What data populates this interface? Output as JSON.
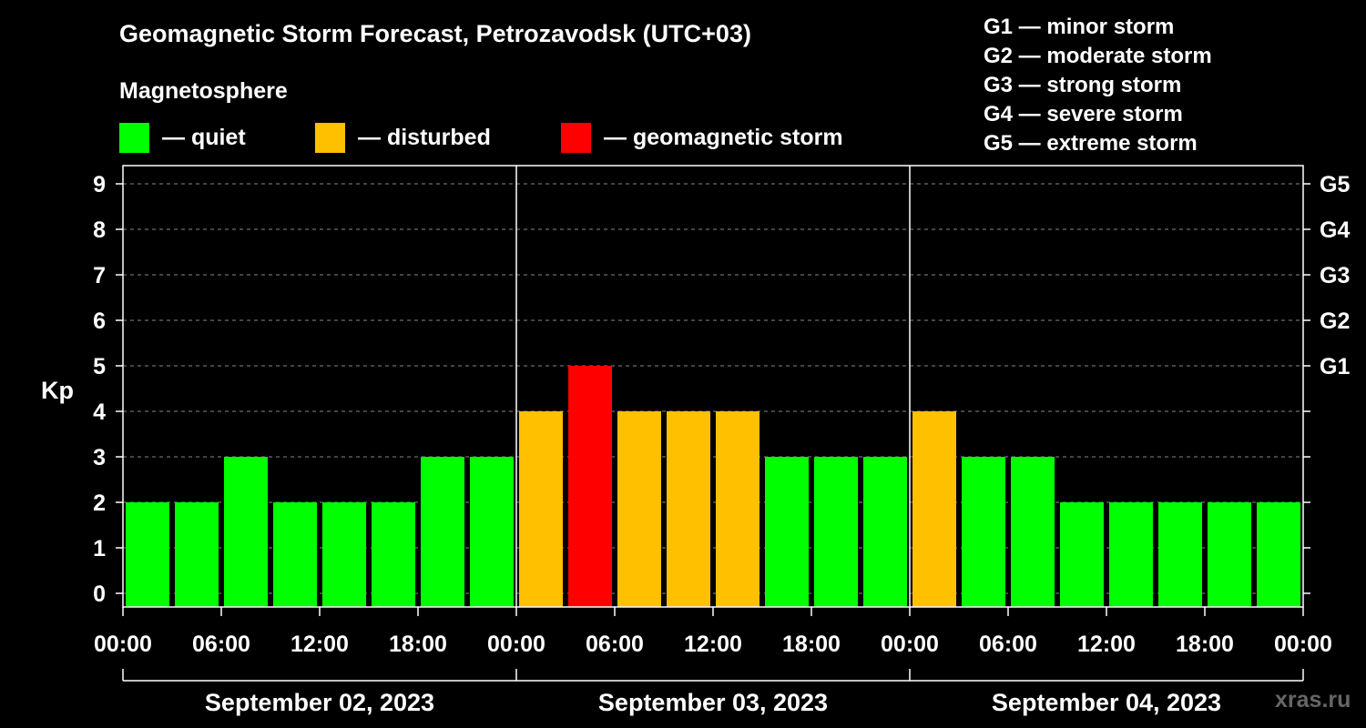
{
  "chart_data": {
    "type": "bar",
    "title": "Geomagnetic Storm Forecast, Petrozavodsk (UTC+03)",
    "subtitle": "Magnetosphere",
    "ylabel": "Kp",
    "ylim": [
      0,
      9
    ],
    "yticks": [
      "0",
      "1",
      "2",
      "3",
      "4",
      "5",
      "6",
      "7",
      "8",
      "9"
    ],
    "right_ticks": [
      {
        "label": "G1",
        "kp": 5
      },
      {
        "label": "G2",
        "kp": 6
      },
      {
        "label": "G3",
        "kp": 7
      },
      {
        "label": "G4",
        "kp": 8
      },
      {
        "label": "G5",
        "kp": 9
      }
    ],
    "legend": [
      {
        "label": "— quiet",
        "color": "#00ff00"
      },
      {
        "label": "— disturbed",
        "color": "#ffc000"
      },
      {
        "label": "— geomagnetic storm",
        "color": "#ff0000"
      }
    ],
    "g_scale": [
      "G1 — minor storm",
      "G2 — moderate storm",
      "G3 — strong storm",
      "G4 — severe storm",
      "G5 — extreme storm"
    ],
    "xticks": [
      "00:00",
      "06:00",
      "12:00",
      "18:00",
      "00:00",
      "06:00",
      "12:00",
      "18:00",
      "00:00",
      "06:00",
      "12:00",
      "18:00",
      "00:00"
    ],
    "days": [
      "September 02, 2023",
      "September 03, 2023",
      "September 04, 2023"
    ],
    "interval_hours": 3,
    "values": [
      2,
      2,
      3,
      2,
      2,
      2,
      3,
      3,
      4,
      5,
      4,
      4,
      4,
      3,
      3,
      3,
      4,
      3,
      3,
      2,
      2,
      2,
      2,
      2
    ],
    "colors": {
      "quiet": "#00ff00",
      "disturbed": "#ffc000",
      "storm": "#ff0000"
    }
  },
  "watermark": "xras.ru"
}
